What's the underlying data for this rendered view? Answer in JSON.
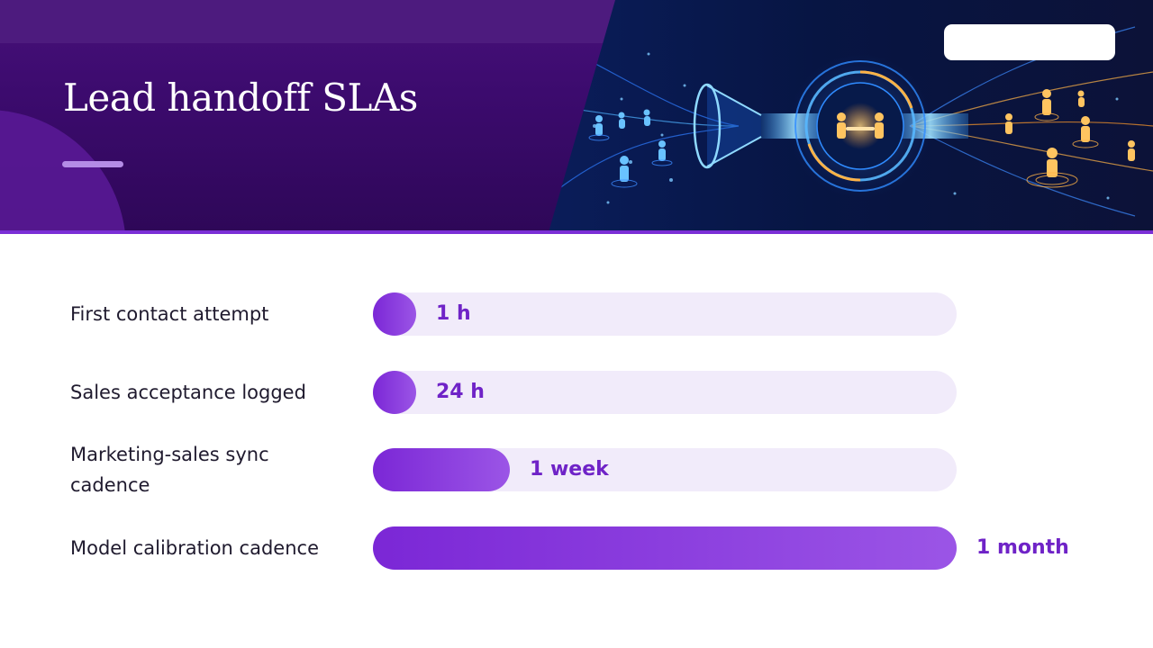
{
  "title": "Lead handoff SLAs",
  "colors": {
    "header_purple": "#3c0b6e",
    "accent": "#7b2fd6",
    "bar_fill": "#8a3ddf",
    "bar_track": "#f1ebfa",
    "value_text": "#6f23c7",
    "label_text": "#1f1a2e"
  },
  "sla_rows": [
    {
      "label": "First contact attempt",
      "value": "1 h",
      "fill_fraction": 0.074
    },
    {
      "label": "Sales acceptance logged",
      "value": "24 h",
      "fill_fraction": 0.074
    },
    {
      "label": "Marketing-sales sync cadence",
      "value": "1 week",
      "fill_fraction": 0.235
    },
    {
      "label": "Model calibration cadence",
      "value": "1 month",
      "fill_fraction": 1.0
    }
  ]
}
